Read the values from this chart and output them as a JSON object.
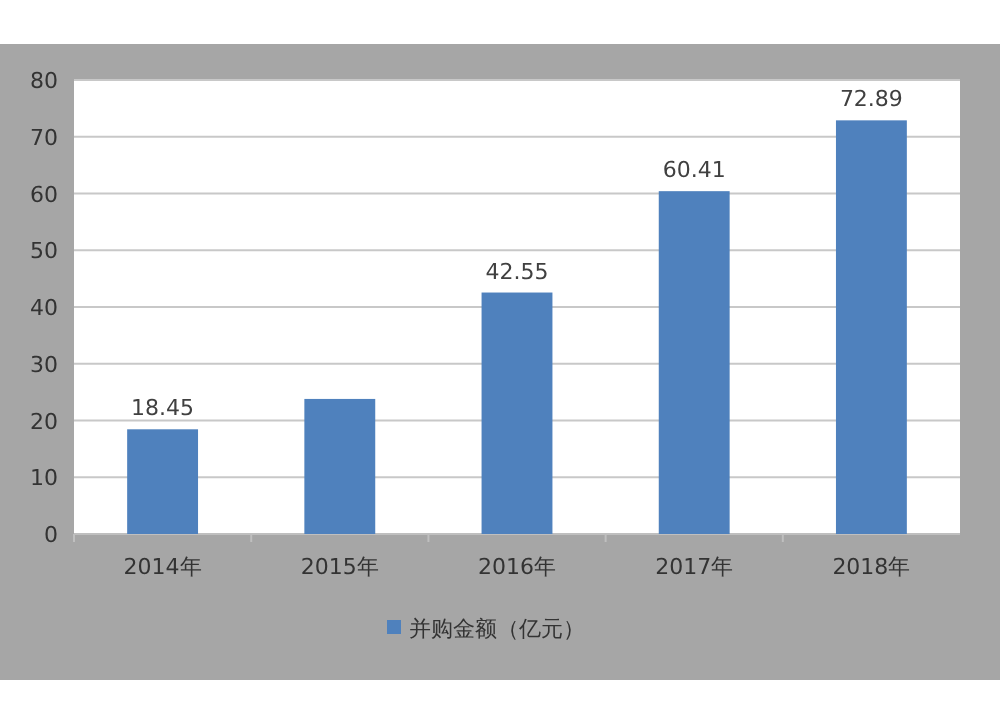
{
  "chart_data": {
    "type": "bar",
    "categories": [
      "2014年",
      "2015年",
      "2016年",
      "2017年",
      "2018年"
    ],
    "series": [
      {
        "name": "并购金额（亿元）",
        "color": "#4f81bd",
        "values": [
          18.45,
          23.8,
          42.55,
          60.41,
          72.89
        ],
        "value_labels": [
          "18.45",
          null,
          "42.55",
          "60.41",
          "72.89"
        ]
      }
    ],
    "ylim": [
      0,
      80
    ],
    "yticks": [
      0,
      10,
      20,
      30,
      40,
      50,
      60,
      70,
      80
    ],
    "grid": "y",
    "legend": "bottom"
  }
}
